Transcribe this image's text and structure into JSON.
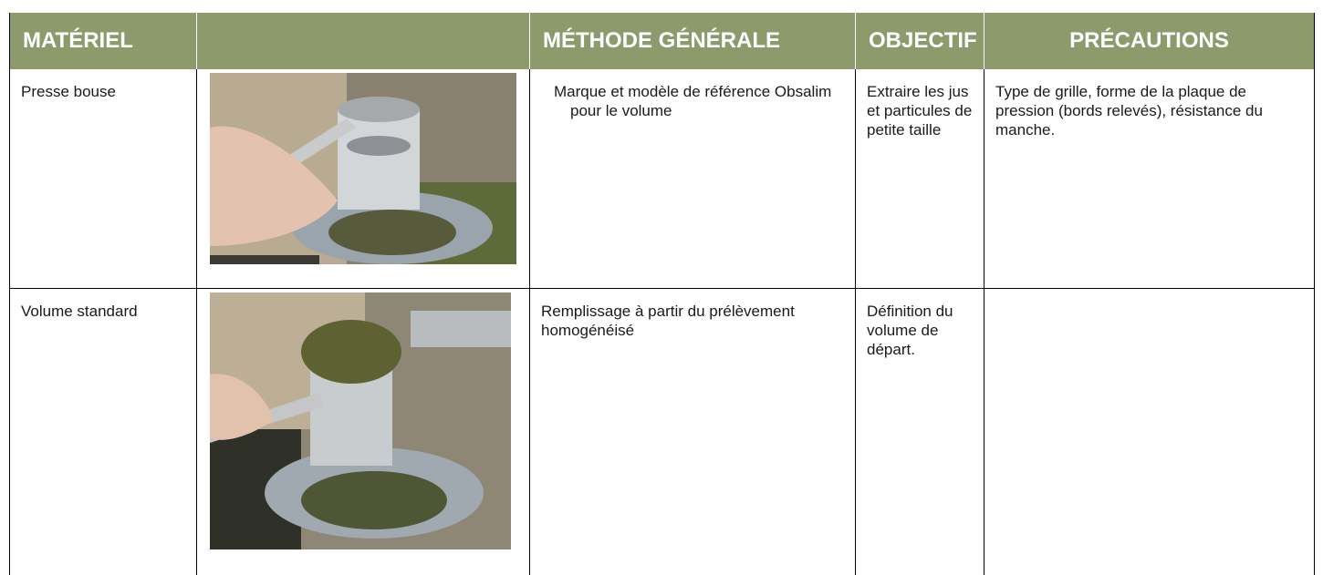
{
  "table": {
    "header": [
      "MATÉRIEL",
      "MÉTHODE GÉNÉRALE",
      "OBJECTIF",
      "PRÉCAUTIONS"
    ],
    "rows": [
      {
        "material": "Presse bouse",
        "method": "Marque et modèle de référence Obsalim pour le volume",
        "objective": "Extraire les jus et particules de petite taille",
        "precautions": "Type de grille, forme de la plaque de pression (bords relevés), résistance du manche."
      },
      {
        "material": "Volume standard",
        "method": "Remplissage à partir du prélèvement homogénéisé",
        "objective": "Définition du volume de départ."
      }
    ]
  }
}
